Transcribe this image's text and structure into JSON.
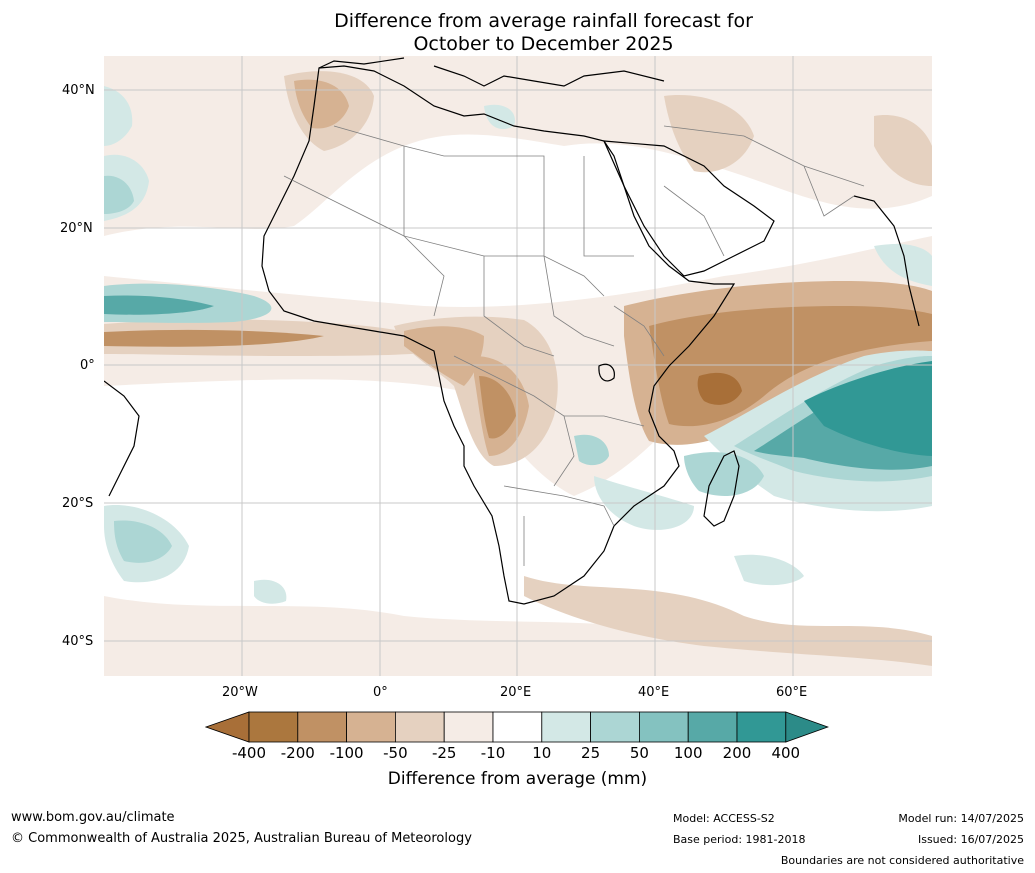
{
  "title": {
    "line1": "Difference from average rainfall forecast for",
    "line2": "October to December 2025"
  },
  "map": {
    "latitude_labels": [
      "40°N",
      "20°N",
      "0°",
      "20°S",
      "40°S"
    ],
    "longitude_labels": [
      "20°W",
      "0°",
      "20°E",
      "40°E",
      "60°E"
    ]
  },
  "legend": {
    "title": "Difference from average (mm)",
    "ticks": [
      "-400",
      "-200",
      "-100",
      "-50",
      "-25",
      "-10",
      "10",
      "25",
      "50",
      "100",
      "200",
      "400"
    ],
    "colors": [
      "#a86f38",
      "#ab773e",
      "#c09164",
      "#d6b292",
      "#e5d1c0",
      "#f5ece6",
      "#ffffff",
      "#d3e8e6",
      "#acd6d4",
      "#84c2c0",
      "#57a9a7",
      "#319895",
      "#2c8b88"
    ]
  },
  "footer": {
    "website": "www.bom.gov.au/climate",
    "copyright": "© Commonwealth of Australia 2025, Australian Bureau of Meteorology",
    "model": "Model: ACCESS-S2",
    "base_period": "Base period: 1981-2018",
    "model_run": "Model run: 14/07/2025",
    "issued": "Issued: 16/07/2025",
    "boundaries_note": "Boundaries are not considered authoritative"
  }
}
